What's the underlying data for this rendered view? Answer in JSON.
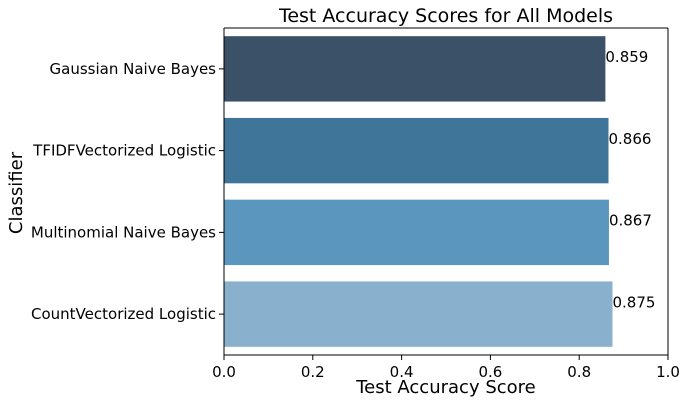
{
  "chart_data": {
    "type": "bar",
    "orientation": "horizontal",
    "title": "Test Accuracy Scores for All Models",
    "xlabel": "Test Accuracy Score",
    "ylabel": "Classifier",
    "xlim": [
      0,
      1.0
    ],
    "xticks": [
      "0.0",
      "0.2",
      "0.4",
      "0.6",
      "0.8",
      "1.0"
    ],
    "grid": false,
    "categories": [
      "Gaussian Naive Bayes",
      "TFIDFVectorized Logistic",
      "Multinomial Naive Bayes",
      "CountVectorized Logistic"
    ],
    "values": [
      0.859,
      0.866,
      0.867,
      0.875
    ],
    "value_labels": [
      "0.859",
      "0.866",
      "0.867",
      "0.875"
    ],
    "colors": [
      "#3b5168",
      "#3f7599",
      "#5a96be",
      "#89b1cd"
    ]
  }
}
